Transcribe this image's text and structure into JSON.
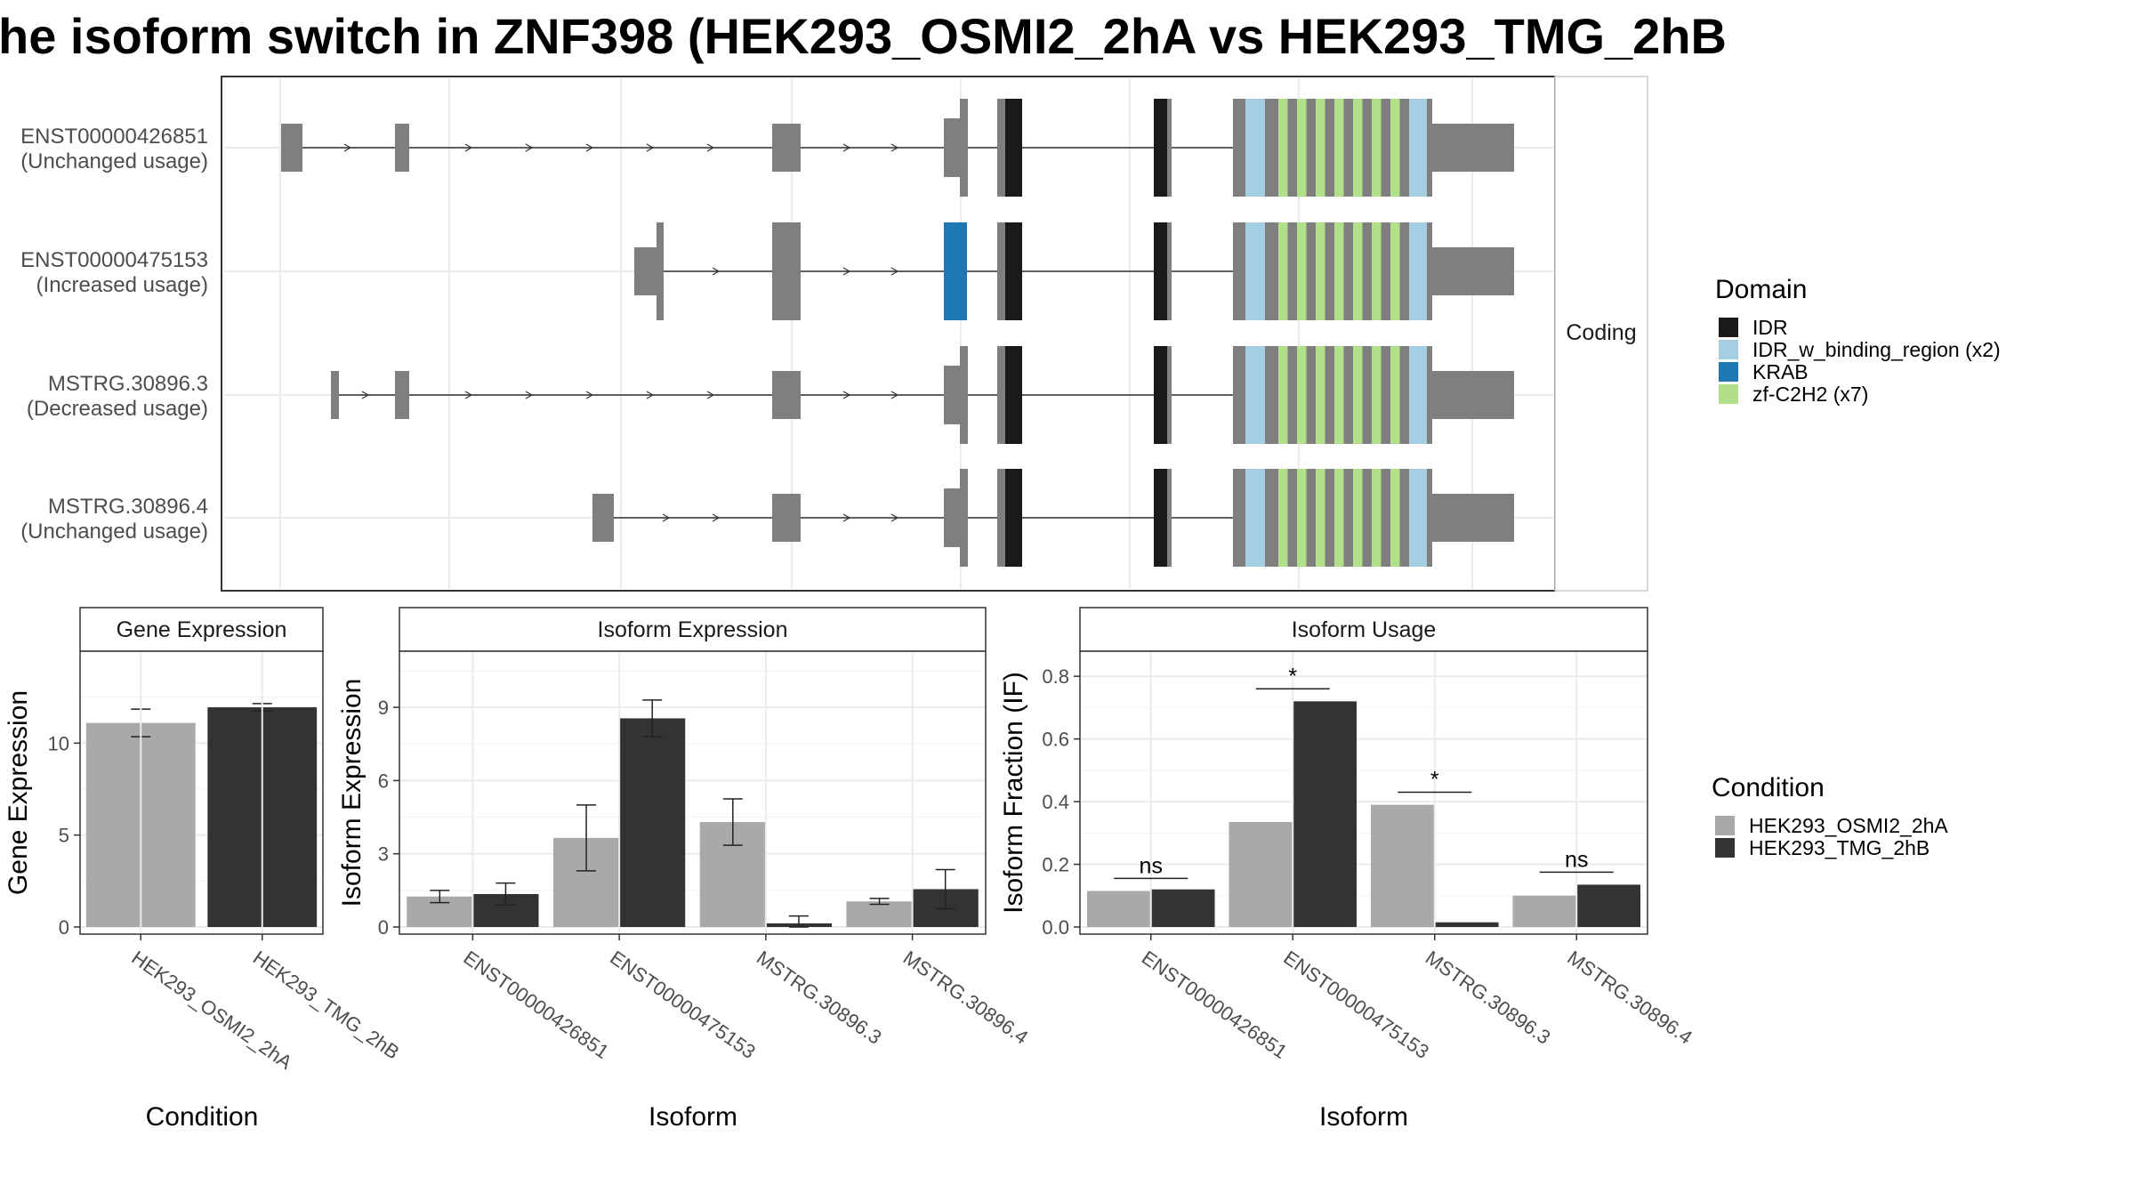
{
  "title": "he isoform switch in ZNF398 (HEK293_OSMI2_2hA vs HEK293_TMG_2hB",
  "colors": {
    "exon": "#7f7f7f",
    "IDR": "#1a1a1a",
    "IDR_w_binding_region": "#a6cee3",
    "KRAB": "#1f78b4",
    "zf_C2H2": "#b2df8a",
    "condition_A": "#a9a9a9",
    "condition_B": "#333333"
  },
  "structure": {
    "facet_label": "Coding",
    "isoforms": [
      {
        "id": "ENST00000426851",
        "label": "ENST00000426851",
        "sublabel": "(Unchanged usage)"
      },
      {
        "id": "ENST00000475153",
        "label": "ENST00000475153",
        "sublabel": "(Increased usage)"
      },
      {
        "id": "MSTRG.30896.3",
        "label": "MSTRG.30896.3",
        "sublabel": "(Decreased usage)"
      },
      {
        "id": "MSTRG.30896.4",
        "label": "MSTRG.30896.4",
        "sublabel": "(Unchanged usage)"
      }
    ]
  },
  "legend_domain": {
    "title": "Domain",
    "items": [
      {
        "label": "IDR",
        "color": "#1a1a1a"
      },
      {
        "label": "IDR_w_binding_region (x2)",
        "color": "#a6cee3"
      },
      {
        "label": "KRAB",
        "color": "#1f78b4"
      },
      {
        "label": "zf-C2H2 (x7)",
        "color": "#b2df8a"
      }
    ]
  },
  "legend_condition": {
    "title": "Condition",
    "items": [
      {
        "label": "HEK293_OSMI2_2hA",
        "color": "#a9a9a9"
      },
      {
        "label": "HEK293_TMG_2hB",
        "color": "#333333"
      }
    ]
  },
  "chart_data": [
    {
      "type": "bar",
      "title": "Gene Expression",
      "xlabel": "Condition",
      "ylabel": "Gene Expression",
      "ylim": [
        0,
        15
      ],
      "yticks": [
        0,
        5,
        10
      ],
      "categories": [
        "HEK293_OSMI2_2hA",
        "HEK293_TMG_2hB"
      ],
      "series": [
        {
          "values": [
            11.1,
            11.95
          ],
          "error": [
            0.75,
            0.2
          ]
        }
      ],
      "bar_colors": [
        "#a9a9a9",
        "#333333"
      ]
    },
    {
      "type": "bar",
      "title": "Isoform Expression",
      "xlabel": "Isoform",
      "ylabel": "Isoform Expression",
      "ylim": [
        0,
        11.3
      ],
      "yticks": [
        0,
        3,
        6,
        9
      ],
      "categories": [
        "ENST00000426851",
        "ENST00000475153",
        "MSTRG.30896.3",
        "MSTRG.30896.4"
      ],
      "series": [
        {
          "name": "HEK293_OSMI2_2hA",
          "values": [
            1.25,
            3.65,
            4.3,
            1.05
          ],
          "error": [
            0.25,
            1.35,
            0.95,
            0.12
          ]
        },
        {
          "name": "HEK293_TMG_2hB",
          "values": [
            1.35,
            8.55,
            0.15,
            1.55
          ],
          "error": [
            0.45,
            0.75,
            0.3,
            0.8
          ]
        }
      ]
    },
    {
      "type": "bar",
      "title": "Isoform Usage",
      "xlabel": "Isoform",
      "ylabel": "Isoform Fraction (IF)",
      "ylim": [
        0,
        0.88
      ],
      "yticks": [
        0.0,
        0.2,
        0.4,
        0.6,
        0.8
      ],
      "ytick_labels": [
        "0.0",
        "0.2",
        "0.4",
        "0.6",
        "0.8"
      ],
      "categories": [
        "ENST00000426851",
        "ENST00000475153",
        "MSTRG.30896.3",
        "MSTRG.30896.4"
      ],
      "series": [
        {
          "name": "HEK293_OSMI2_2hA",
          "values": [
            0.115,
            0.335,
            0.39,
            0.1
          ]
        },
        {
          "name": "HEK293_TMG_2hB",
          "values": [
            0.12,
            0.72,
            0.015,
            0.135
          ]
        }
      ],
      "annotations": [
        {
          "category": "ENST00000426851",
          "label": "ns",
          "y": 0.155
        },
        {
          "category": "ENST00000475153",
          "label": "*",
          "y": 0.76
        },
        {
          "category": "MSTRG.30896.3",
          "label": "*",
          "y": 0.43
        },
        {
          "category": "MSTRG.30896.4",
          "label": "ns",
          "y": 0.175
        }
      ]
    }
  ]
}
